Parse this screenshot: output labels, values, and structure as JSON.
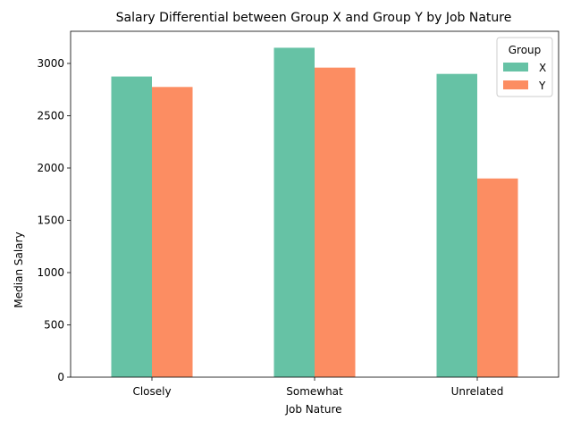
{
  "chart_data": {
    "type": "bar",
    "title": "Salary Differential between Group X and Group Y by Job Nature",
    "xlabel": "Job Nature",
    "ylabel": "Median Salary",
    "categories": [
      "Closely",
      "Somewhat",
      "Unrelated"
    ],
    "series": [
      {
        "name": "X",
        "values": [
          2875,
          3150,
          2900
        ],
        "color": "#66c2a5"
      },
      {
        "name": "Y",
        "values": [
          2775,
          2960,
          1900
        ],
        "color": "#fc8d62"
      }
    ],
    "ylim": [
      0,
      3307.5
    ],
    "yticks": [
      0,
      500,
      1000,
      1500,
      2000,
      2500,
      3000
    ],
    "grid": false,
    "legend": {
      "title": "Group",
      "placement": "top-right"
    }
  }
}
